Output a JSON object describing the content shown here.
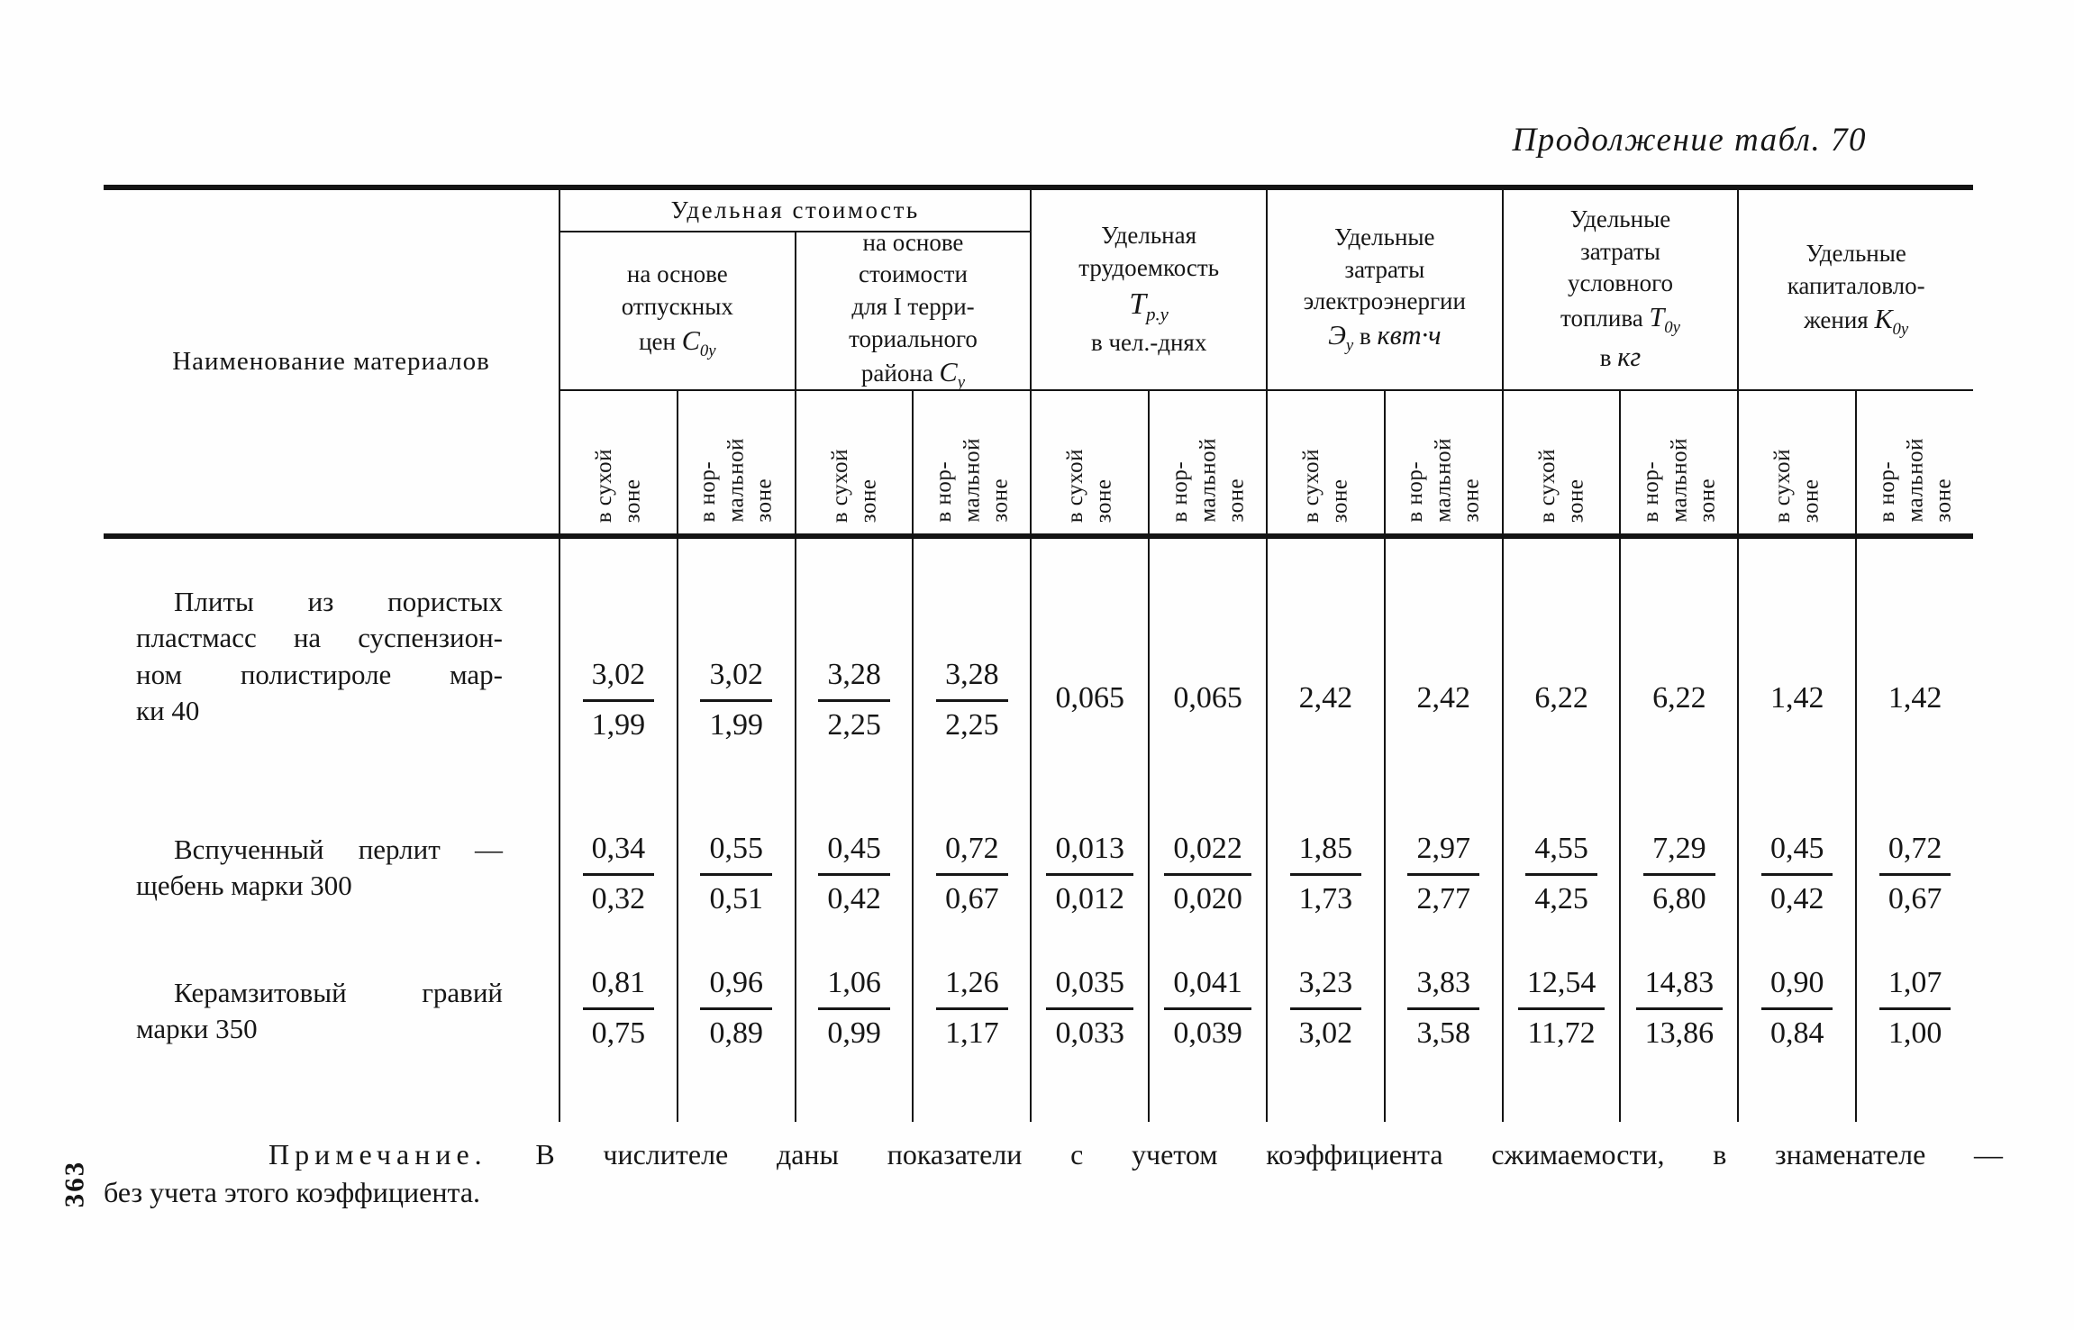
{
  "page": {
    "title": "Продолжение табл. 70",
    "page_number": "363",
    "note_label": "Примечание.",
    "note_line1": "В числителе даны показатели с учетом коэффициента сжимаемости, в знаменателе —",
    "note_line2": "без учета этого коэффициента."
  },
  "table": {
    "name_header": "Наименование материалов",
    "zone_dry": "в сухой\nзоне",
    "zone_normal": "в нор-\nмальной\nзоне",
    "cost": {
      "title": "Удельная стоимость",
      "sub1": {
        "l1": "на основе",
        "l2": "отпускных",
        "prefix": "цен",
        "base": "С",
        "sub": "0у"
      },
      "sub2": {
        "l1": "на основе",
        "l2": "стоимости",
        "l3": "для I терри-",
        "l4": "ториального",
        "prefix": "района",
        "base": "С",
        "sub": "у"
      }
    },
    "labor": {
      "l1": "Удельная",
      "l2": "трудоемкость",
      "base": "Т",
      "sub": "р.у",
      "unit": "в чел.-днях"
    },
    "electricity": {
      "l1": "Удельные",
      "l2": "затраты",
      "l3": "электроэнергии",
      "base": "Э",
      "sub": "у",
      "mid": "в",
      "unit": "квт·ч"
    },
    "fuel": {
      "l1": "Удельные",
      "l2": "затраты",
      "l3": "условного",
      "prefix": "топлива",
      "base": "Т",
      "sub": "0у",
      "unit_prefix": "в",
      "unit": "кг"
    },
    "capital": {
      "l1": "Удельные",
      "l2": "капиталовло-",
      "prefix": "жения",
      "base": "К",
      "sub": "0у"
    },
    "rows": [
      {
        "name_lines": [
          "Плиты из пористых",
          "пластмасс на суспензион-",
          "ном полистироле мар-",
          "ки 40"
        ],
        "values": [
          {
            "top": "3,02",
            "bottom": "1,99"
          },
          {
            "top": "3,02",
            "bottom": "1,99"
          },
          {
            "top": "3,28",
            "bottom": "2,25"
          },
          {
            "top": "3,28",
            "bottom": "2,25"
          },
          {
            "v": "0,065"
          },
          {
            "v": "0,065"
          },
          {
            "v": "2,42"
          },
          {
            "v": "2,42"
          },
          {
            "v": "6,22"
          },
          {
            "v": "6,22"
          },
          {
            "v": "1,42"
          },
          {
            "v": "1,42"
          }
        ]
      },
      {
        "name_lines": [
          "Вспученный перлит —",
          "щебень марки 300"
        ],
        "values": [
          {
            "top": "0,34",
            "bottom": "0,32"
          },
          {
            "top": "0,55",
            "bottom": "0,51"
          },
          {
            "top": "0,45",
            "bottom": "0,42"
          },
          {
            "top": "0,72",
            "bottom": "0,67"
          },
          {
            "top": "0,013",
            "bottom": "0,012"
          },
          {
            "top": "0,022",
            "bottom": "0,020"
          },
          {
            "top": "1,85",
            "bottom": "1,73"
          },
          {
            "top": "2,97",
            "bottom": "2,77"
          },
          {
            "top": "4,55",
            "bottom": "4,25"
          },
          {
            "top": "7,29",
            "bottom": "6,80"
          },
          {
            "top": "0,45",
            "bottom": "0,42"
          },
          {
            "top": "0,72",
            "bottom": "0,67"
          }
        ]
      },
      {
        "name_lines": [
          "Керамзитовый гравий",
          "марки 350"
        ],
        "values": [
          {
            "top": "0,81",
            "bottom": "0,75"
          },
          {
            "top": "0,96",
            "bottom": "0,89"
          },
          {
            "top": "1,06",
            "bottom": "0,99"
          },
          {
            "top": "1,26",
            "bottom": "1,17"
          },
          {
            "top": "0,035",
            "bottom": "0,033"
          },
          {
            "top": "0,041",
            "bottom": "0,039"
          },
          {
            "top": "3,23",
            "bottom": "3,02"
          },
          {
            "top": "3,83",
            "bottom": "3,58"
          },
          {
            "top": "12,54",
            "bottom": "11,72"
          },
          {
            "top": "14,83",
            "bottom": "13,86"
          },
          {
            "top": "0,90",
            "bottom": "0,84"
          },
          {
            "top": "1,07",
            "bottom": "1,00"
          }
        ]
      }
    ]
  }
}
